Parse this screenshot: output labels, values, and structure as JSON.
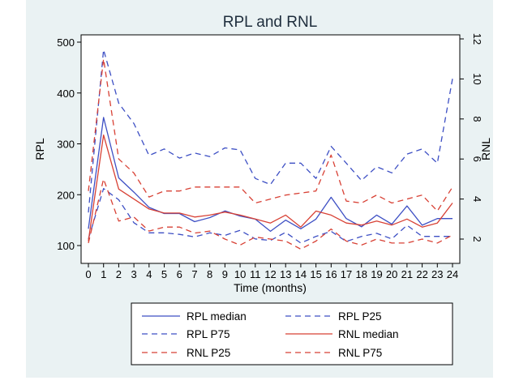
{
  "chart_data": {
    "type": "line",
    "title": "RPL and RNL",
    "xlabel": "Time (months)",
    "ylabel_left": "RPL",
    "ylabel_right": "RNL",
    "x": [
      0,
      1,
      2,
      3,
      4,
      5,
      6,
      7,
      8,
      9,
      10,
      11,
      12,
      13,
      14,
      15,
      16,
      17,
      18,
      19,
      20,
      21,
      22,
      23,
      24
    ],
    "xlim": [
      0,
      24
    ],
    "ylim_left": [
      100,
      500
    ],
    "ylim_right": [
      2,
      12
    ],
    "yticks_left": [
      "100",
      "200",
      "300",
      "400",
      "500"
    ],
    "yticks_right": [
      "2",
      "4",
      "6",
      "8",
      "10",
      "12"
    ],
    "grid": false,
    "legend_position": "bottom",
    "series": [
      {
        "name": "RPL median",
        "axis": "left",
        "color": "#3d4fc4",
        "dash": "solid",
        "values": [
          133,
          352,
          233,
          205,
          175,
          163,
          163,
          147,
          155,
          168,
          158,
          152,
          128,
          150,
          133,
          152,
          195,
          153,
          137,
          160,
          142,
          178,
          140,
          153,
          153
        ]
      },
      {
        "name": "RPL P25",
        "axis": "left",
        "color": "#3d4fc4",
        "dash": "dashed",
        "values": [
          113,
          212,
          190,
          145,
          125,
          125,
          122,
          117,
          125,
          120,
          130,
          113,
          110,
          126,
          105,
          118,
          128,
          108,
          118,
          124,
          113,
          140,
          118,
          118,
          118
        ]
      },
      {
        "name": "RPL P75",
        "axis": "left",
        "color": "#3d4fc4",
        "dash": "dashed",
        "values": [
          165,
          485,
          380,
          340,
          277,
          290,
          272,
          282,
          275,
          292,
          288,
          232,
          220,
          262,
          262,
          232,
          295,
          262,
          228,
          255,
          243,
          280,
          290,
          262,
          428
        ]
      },
      {
        "name": "RNL median",
        "axis": "right",
        "color": "#d84135",
        "dash": "solid",
        "values": [
          1.9,
          7.2,
          4.5,
          4.0,
          3.5,
          3.3,
          3.3,
          3.1,
          3.2,
          3.35,
          3.2,
          3.0,
          2.8,
          3.2,
          2.6,
          3.4,
          3.2,
          2.8,
          2.7,
          2.9,
          2.7,
          3.0,
          2.6,
          2.8,
          3.8
        ]
      },
      {
        "name": "RNL P25",
        "axis": "right",
        "color": "#d84135",
        "dash": "dashed",
        "values": [
          1.8,
          5.0,
          2.9,
          3.1,
          2.4,
          2.6,
          2.6,
          2.3,
          2.4,
          2.0,
          1.7,
          2.1,
          2.0,
          1.9,
          1.5,
          1.9,
          2.5,
          1.9,
          1.7,
          2.0,
          1.8,
          1.8,
          2.0,
          1.8,
          2.2
        ]
      },
      {
        "name": "RNL P75",
        "axis": "right",
        "color": "#d84135",
        "dash": "dashed",
        "values": [
          4.4,
          11.0,
          6.0,
          5.3,
          4.1,
          4.4,
          4.4,
          4.6,
          4.6,
          4.6,
          4.6,
          3.8,
          4.0,
          4.2,
          4.3,
          4.4,
          6.2,
          3.9,
          3.8,
          4.2,
          3.8,
          4.0,
          4.2,
          3.4,
          4.6
        ]
      }
    ]
  }
}
